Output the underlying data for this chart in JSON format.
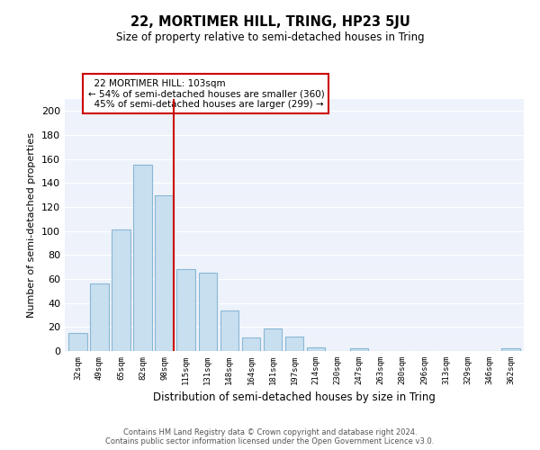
{
  "title": "22, MORTIMER HILL, TRING, HP23 5JU",
  "subtitle": "Size of property relative to semi-detached houses in Tring",
  "xlabel": "Distribution of semi-detached houses by size in Tring",
  "ylabel": "Number of semi-detached properties",
  "bar_labels": [
    "32sqm",
    "49sqm",
    "65sqm",
    "82sqm",
    "98sqm",
    "115sqm",
    "131sqm",
    "148sqm",
    "164sqm",
    "181sqm",
    "197sqm",
    "214sqm",
    "230sqm",
    "247sqm",
    "263sqm",
    "280sqm",
    "296sqm",
    "313sqm",
    "329sqm",
    "346sqm",
    "362sqm"
  ],
  "bar_values": [
    15,
    56,
    101,
    155,
    130,
    68,
    65,
    34,
    11,
    19,
    12,
    3,
    0,
    2,
    0,
    0,
    0,
    0,
    0,
    0,
    2
  ],
  "bar_color": "#c8dff0",
  "bar_edge_color": "#87b8d4",
  "vline_color": "#cc0000",
  "annotation_box_edge": "#cc0000",
  "property_label": "22 MORTIMER HILL: 103sqm",
  "smaller_pct": 54,
  "smaller_count": 360,
  "larger_pct": 45,
  "larger_count": 299,
  "vline_bin_index": 4,
  "ylim": [
    0,
    210
  ],
  "yticks": [
    0,
    20,
    40,
    60,
    80,
    100,
    120,
    140,
    160,
    180,
    200
  ],
  "footer_line1": "Contains HM Land Registry data © Crown copyright and database right 2024.",
  "footer_line2": "Contains public sector information licensed under the Open Government Licence v3.0.",
  "background_color": "#eef2fb",
  "grid_color": "#ffffff",
  "fig_bg_color": "#ffffff"
}
